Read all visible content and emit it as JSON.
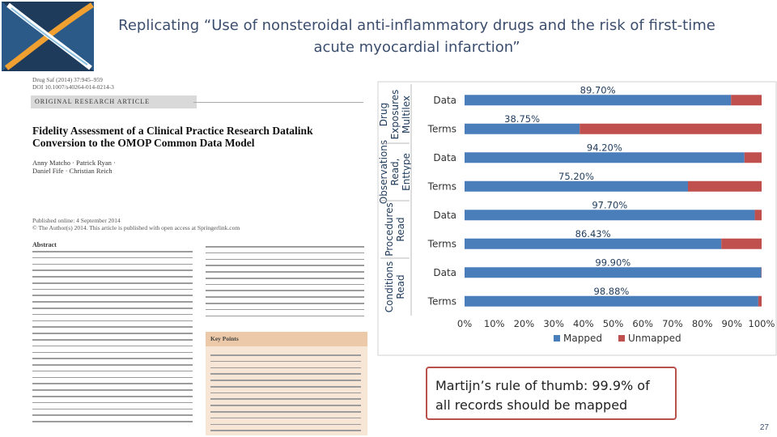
{
  "slide": {
    "title_line1": "Replicating “Use of nonsteroidal anti-inflammatory drugs and the risk of first-time",
    "title_line2": "acute myocardial infarction”",
    "callout": "Martijn’s rule of thumb: 99.9% of all records should be mapped",
    "page_number": "27"
  },
  "paper": {
    "meta_line1": "Drug Saf (2014) 37:945–959",
    "meta_line2": "DOI 10.1007/s40264-014-0214-3",
    "article_type": "ORIGINAL RESEARCH ARTICLE",
    "title_line1": "Fidelity Assessment of a Clinical Practice Research Datalink",
    "title_line2": "Conversion to the OMOP Common Data Model",
    "authors_line1": "Anny Matcho · Patrick Ryan ·",
    "authors_line2": "Daniel Fife · Christian Reich",
    "online_line1": "Published online: 4 September 2014",
    "online_line2": "© The Author(s) 2014. This article is published with open access at Springerlink.com",
    "abstract_heading": "Abstract",
    "key_points_heading": "Key Points"
  },
  "colors": {
    "mapped": "#4a7ebb",
    "unmapped": "#c0504d",
    "title": "#3c4e6e",
    "callout_border": "#b8504b"
  },
  "chart_data": {
    "type": "bar",
    "orientation": "horizontal",
    "stacked": true,
    "groups": [
      {
        "label": "Drug Exposures Multilex",
        "label_lines": [
          "Drug",
          "Exposures",
          "Multilex"
        ],
        "categories": [
          "Data",
          "Terms"
        ]
      },
      {
        "label": "Observations Read, Enttype",
        "label_lines": [
          "Observations",
          "Read,",
          "Enttype"
        ],
        "categories": [
          "Data",
          "Terms"
        ]
      },
      {
        "label": "Procedures Read",
        "label_lines": [
          "Procedures",
          "Read"
        ],
        "categories": [
          "Data",
          "Terms"
        ]
      },
      {
        "label": "Conditions Read",
        "label_lines": [
          "Conditions",
          "Read"
        ],
        "categories": [
          "Data",
          "Terms"
        ]
      }
    ],
    "categories": [
      "Data",
      "Terms",
      "Data",
      "Terms",
      "Data",
      "Terms",
      "Data",
      "Terms"
    ],
    "series": [
      {
        "name": "Mapped",
        "values": [
          89.7,
          38.75,
          94.2,
          75.2,
          97.7,
          86.43,
          99.9,
          98.88
        ],
        "labels": [
          "89.70%",
          "38.75%",
          "94.20%",
          "75.20%",
          "97.70%",
          "86.43%",
          "99.90%",
          "98.88%"
        ]
      },
      {
        "name": "Unmapped",
        "values": [
          10.3,
          61.25,
          5.8,
          24.8,
          2.3,
          13.57,
          0.1,
          1.12
        ]
      }
    ],
    "xlim": [
      0,
      100
    ],
    "xticks": [
      "0%",
      "10%",
      "20%",
      "30%",
      "40%",
      "50%",
      "60%",
      "70%",
      "80%",
      "90%",
      "100%"
    ],
    "grid": false,
    "legend": "bottom"
  }
}
